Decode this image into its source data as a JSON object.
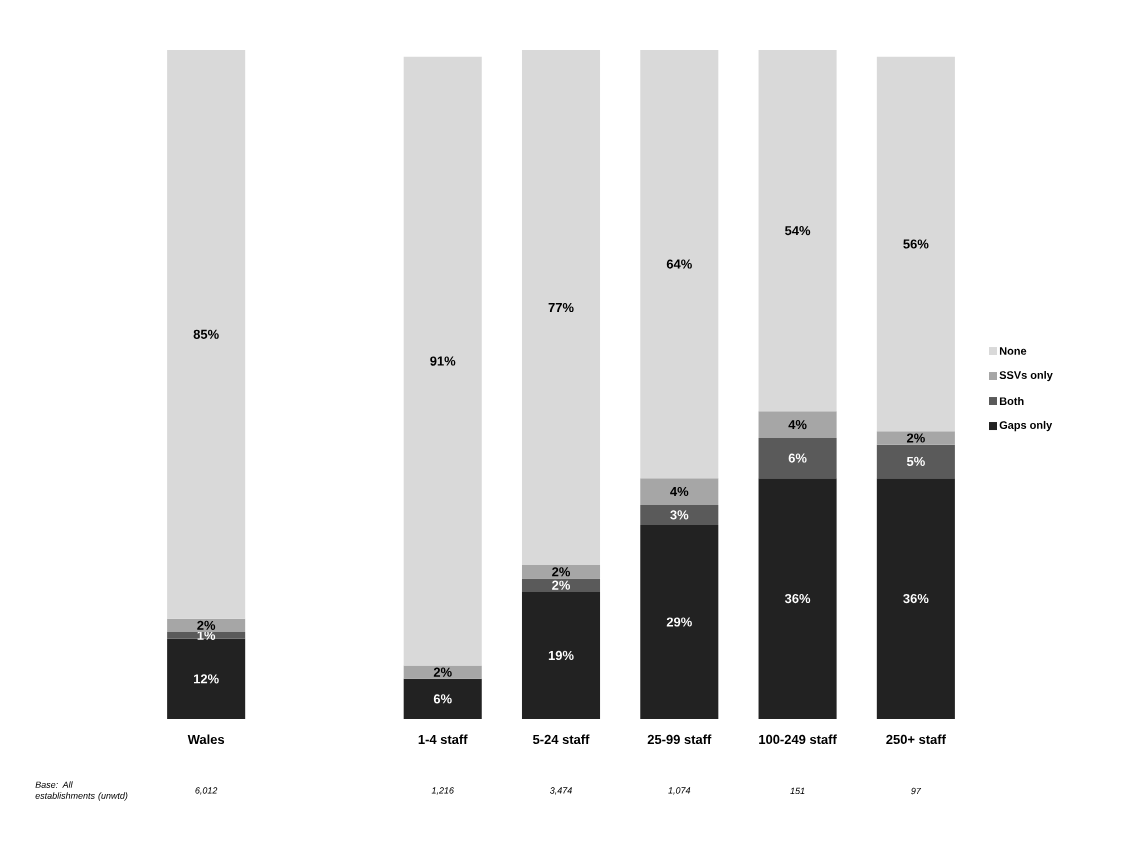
{
  "chart_data": {
    "type": "bar",
    "stacked": true,
    "categories": [
      "Wales",
      null,
      "1-4 staff",
      "5-24 staff",
      "25-99 staff",
      "100-249 staff",
      "250+ staff"
    ],
    "ylim": [
      0,
      100
    ],
    "series": [
      {
        "name": "Gaps only",
        "color": "#222222",
        "values": [
          12,
          null,
          6,
          19,
          29,
          36,
          36
        ],
        "value_labels": [
          "12%",
          null,
          "6%",
          "19%",
          "29%",
          "36%",
          "36%"
        ]
      },
      {
        "name": "Both",
        "color": "#5a5a5a",
        "values": [
          1,
          null,
          null,
          2,
          3,
          6,
          5
        ],
        "value_labels": [
          "1%",
          null,
          null,
          "2%",
          "3%",
          "6%",
          "5%"
        ]
      },
      {
        "name": "SSVs only",
        "color": "#a6a6a6",
        "values": [
          2,
          null,
          2,
          2,
          4,
          4,
          2
        ],
        "value_labels": [
          "2%",
          null,
          "2%",
          "2%",
          "4%",
          "4%",
          "2%"
        ]
      },
      {
        "name": "None",
        "color": "#d9d9d9",
        "values": [
          85,
          null,
          91,
          77,
          64,
          54,
          56
        ],
        "value_labels": [
          "85%",
          null,
          "91%",
          "77%",
          "64%",
          "54%",
          "56%"
        ]
      }
    ],
    "legend": "right",
    "annotations": [
      "Base: All establishments (unwtd)",
      "6,012",
      "1,216",
      "3,474",
      "1,074",
      "151",
      "97"
    ]
  }
}
